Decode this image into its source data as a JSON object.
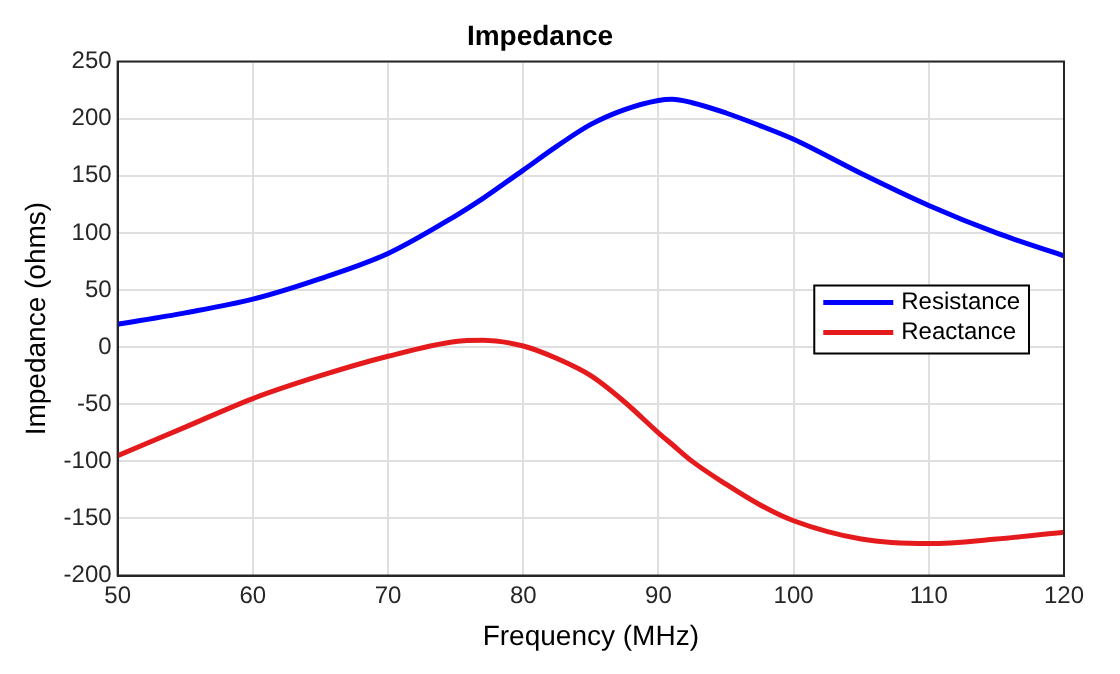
{
  "chart_data": {
    "type": "line",
    "title": "Impedance",
    "xlabel": "Frequency (MHz)",
    "ylabel": "Impedance (ohms)",
    "x": [
      50,
      55,
      60,
      65,
      70,
      75,
      77,
      80,
      82.5,
      85,
      87.5,
      90,
      91,
      92.5,
      95,
      97.5,
      100,
      105,
      110,
      115,
      120
    ],
    "series": [
      {
        "name": "Resistance",
        "color": "#0000ff",
        "values": [
          20,
          30,
          42,
          60,
          82,
          115,
          130,
          155,
          176,
          195,
          208,
          216,
          217,
          214,
          205,
          194,
          182,
          152,
          124,
          100,
          80
        ]
      },
      {
        "name": "Reactance",
        "color": "#e41a1c",
        "values": [
          -95,
          -70,
          -45,
          -25,
          -8,
          5,
          6,
          1,
          -10,
          -25,
          -48,
          -75,
          -85,
          -100,
          -120,
          -138,
          -152,
          -168,
          -172,
          -168,
          -162
        ]
      }
    ],
    "xlim": [
      50,
      120
    ],
    "xticks": [
      50,
      60,
      70,
      80,
      90,
      100,
      110,
      120
    ],
    "ylim": [
      -200,
      250
    ],
    "yticks": [
      -200,
      -150,
      -100,
      -50,
      0,
      50,
      100,
      150,
      200,
      250
    ],
    "grid": true,
    "legend": "right",
    "marker": "none",
    "line_style": "solid"
  }
}
